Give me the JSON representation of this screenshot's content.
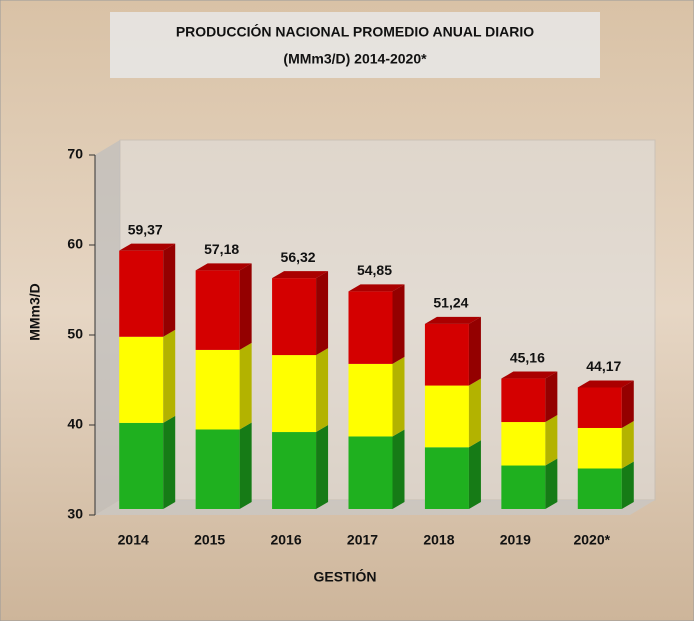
{
  "chart_data": {
    "type": "bar3d",
    "title": [
      "PRODUCCIÓN NACIONAL PROMEDIO ANUAL DIARIO",
      "(MMm3/D) 2014-2020*"
    ],
    "y_label": "MMm3/D",
    "x_label": "GESTIÓN",
    "categories": [
      "2014",
      "2015",
      "2016",
      "2017",
      "2018",
      "2019",
      "2020*"
    ],
    "values": [
      59.37,
      57.18,
      56.32,
      54.85,
      51.24,
      45.16,
      44.17
    ],
    "value_labels": [
      "59,37",
      "57,18",
      "56,32",
      "54,85",
      "51,24",
      "45,16",
      "44,17"
    ],
    "colors": [
      "#1fb01f",
      "#ffff00",
      "#d40000"
    ],
    "ylim": [
      30,
      70
    ],
    "yticks": [
      30,
      40,
      50,
      60,
      70
    ],
    "grid": false
  }
}
